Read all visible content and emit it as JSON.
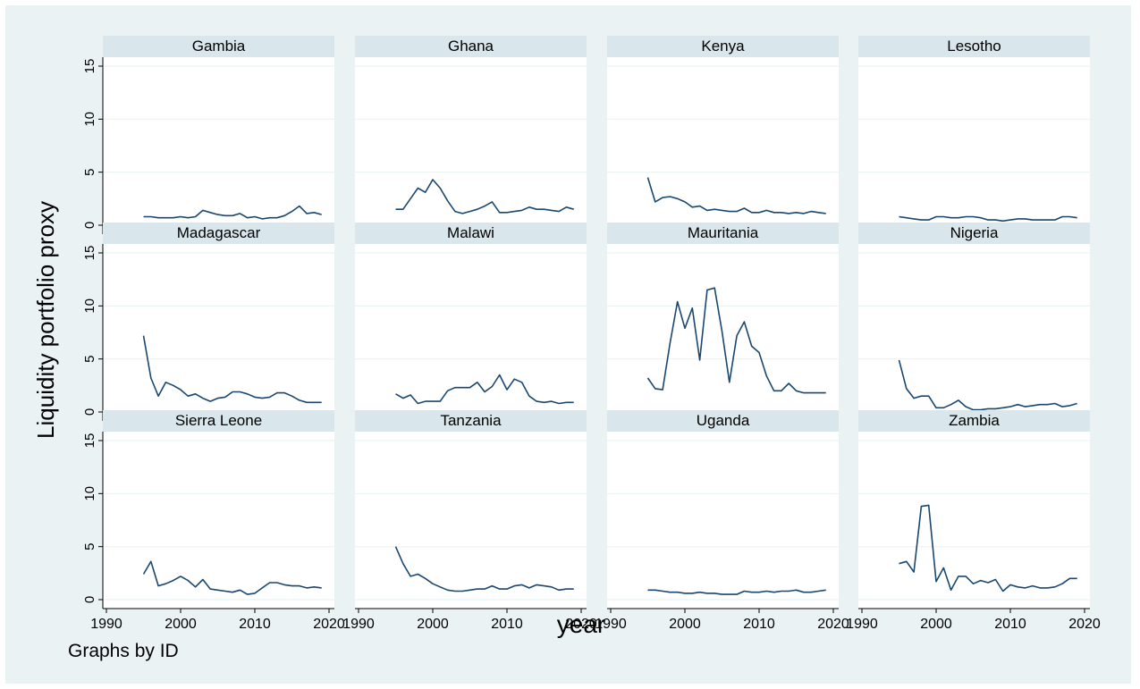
{
  "chart_data": {
    "type": "line",
    "ylabel": "Liquidity portfolio proxy",
    "xlabel": "year",
    "note": "Graphs by ID",
    "xlim": [
      1990,
      2020
    ],
    "ylim": [
      0,
      15
    ],
    "xticks": [
      1990,
      2000,
      2010,
      2020
    ],
    "yticks": [
      0,
      5,
      10,
      15
    ],
    "grid": true,
    "line_color": "#1a476f",
    "panel_header_color": "#d9e6eb",
    "background_color": "#eaf2f3",
    "x": [
      1995,
      1996,
      1997,
      1998,
      1999,
      2000,
      2001,
      2002,
      2003,
      2004,
      2005,
      2006,
      2007,
      2008,
      2009,
      2010,
      2011,
      2012,
      2013,
      2014,
      2015,
      2016,
      2017,
      2018,
      2019
    ],
    "panels": [
      {
        "name": "Gambia",
        "values": [
          0.8,
          0.8,
          0.7,
          0.7,
          0.7,
          0.8,
          0.7,
          0.8,
          1.4,
          1.2,
          1.0,
          0.9,
          0.9,
          1.1,
          0.7,
          0.8,
          0.6,
          0.7,
          0.7,
          0.9,
          1.3,
          1.8,
          1.1,
          1.2,
          1.0
        ]
      },
      {
        "name": "Ghana",
        "values": [
          1.5,
          1.5,
          2.5,
          3.5,
          3.1,
          4.3,
          3.5,
          2.3,
          1.3,
          1.1,
          1.3,
          1.5,
          1.8,
          2.2,
          1.2,
          1.2,
          1.3,
          1.4,
          1.7,
          1.5,
          1.5,
          1.4,
          1.3,
          1.7,
          1.5
        ]
      },
      {
        "name": "Kenya",
        "values": [
          4.5,
          2.2,
          2.6,
          2.7,
          2.5,
          2.2,
          1.7,
          1.8,
          1.4,
          1.5,
          1.4,
          1.3,
          1.3,
          1.6,
          1.2,
          1.2,
          1.4,
          1.2,
          1.2,
          1.1,
          1.2,
          1.1,
          1.3,
          1.2,
          1.1
        ]
      },
      {
        "name": "Lesotho",
        "values": [
          0.8,
          0.7,
          0.6,
          0.5,
          0.5,
          0.8,
          0.8,
          0.7,
          0.7,
          0.8,
          0.8,
          0.7,
          0.5,
          0.5,
          0.4,
          0.5,
          0.6,
          0.6,
          0.5,
          0.5,
          0.5,
          0.5,
          0.8,
          0.8,
          0.7
        ]
      },
      {
        "name": "Madagascar",
        "values": [
          7.2,
          3.2,
          1.5,
          2.8,
          2.5,
          2.1,
          1.5,
          1.7,
          1.3,
          1.0,
          1.3,
          1.4,
          1.9,
          1.9,
          1.7,
          1.4,
          1.3,
          1.4,
          1.8,
          1.8,
          1.5,
          1.1,
          0.9,
          0.9,
          0.9
        ]
      },
      {
        "name": "Malawi",
        "values": [
          1.7,
          1.3,
          1.6,
          0.8,
          1.0,
          1.0,
          1.0,
          2.0,
          2.3,
          2.3,
          2.3,
          2.8,
          1.9,
          2.4,
          3.5,
          2.1,
          3.1,
          2.8,
          1.5,
          1.0,
          0.9,
          1.0,
          0.8,
          0.9,
          0.9
        ]
      },
      {
        "name": "Mauritania",
        "values": [
          3.2,
          2.2,
          2.1,
          6.5,
          10.4,
          7.9,
          9.8,
          4.9,
          11.5,
          11.7,
          7.6,
          2.8,
          7.2,
          8.5,
          6.2,
          5.6,
          3.4,
          2.0,
          2.0,
          2.7,
          2.0,
          1.8,
          1.8,
          1.8,
          1.8
        ]
      },
      {
        "name": "Nigeria",
        "values": [
          4.9,
          2.2,
          1.3,
          1.5,
          1.5,
          0.4,
          0.4,
          0.7,
          1.1,
          0.5,
          0.2,
          0.2,
          0.3,
          0.3,
          0.4,
          0.5,
          0.7,
          0.5,
          0.6,
          0.7,
          0.7,
          0.8,
          0.5,
          0.6,
          0.8
        ]
      },
      {
        "name": "Sierra Leone",
        "values": [
          2.4,
          3.6,
          1.3,
          1.5,
          1.8,
          2.2,
          1.8,
          1.2,
          1.9,
          1.0,
          0.9,
          0.8,
          0.7,
          0.9,
          0.5,
          0.6,
          1.1,
          1.6,
          1.6,
          1.4,
          1.3,
          1.3,
          1.1,
          1.2,
          1.1
        ]
      },
      {
        "name": "Tanzania",
        "values": [
          5.0,
          3.4,
          2.2,
          2.4,
          2.0,
          1.5,
          1.2,
          0.9,
          0.8,
          0.8,
          0.9,
          1.0,
          1.0,
          1.3,
          1.0,
          1.0,
          1.3,
          1.4,
          1.1,
          1.4,
          1.3,
          1.2,
          0.9,
          1.0,
          1.0
        ]
      },
      {
        "name": "Uganda",
        "values": [
          0.9,
          0.9,
          0.8,
          0.7,
          0.7,
          0.6,
          0.6,
          0.7,
          0.6,
          0.6,
          0.5,
          0.5,
          0.5,
          0.8,
          0.7,
          0.7,
          0.8,
          0.7,
          0.8,
          0.8,
          0.9,
          0.7,
          0.7,
          0.8,
          0.9
        ]
      },
      {
        "name": "Zambia",
        "values": [
          3.4,
          3.6,
          2.6,
          8.8,
          8.9,
          1.7,
          3.0,
          0.9,
          2.2,
          2.2,
          1.5,
          1.8,
          1.6,
          1.9,
          0.8,
          1.4,
          1.2,
          1.1,
          1.3,
          1.1,
          1.1,
          1.2,
          1.5,
          2.0,
          2.0
        ]
      }
    ]
  }
}
